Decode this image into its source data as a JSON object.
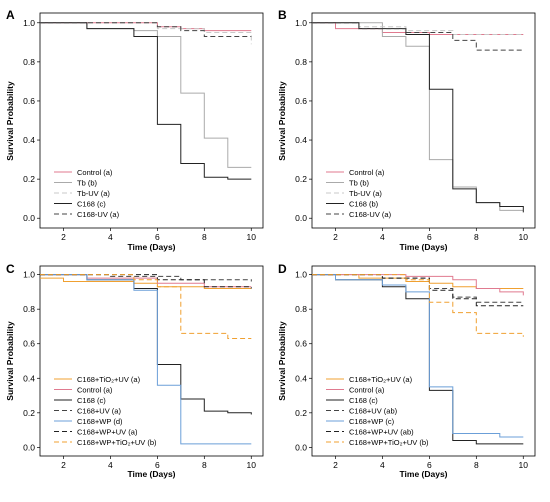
{
  "chart_data": [
    {
      "panel": "A",
      "type": "line",
      "step": true,
      "xlabel": "Time (Days)",
      "ylabel": "Survival Probability",
      "xlim": [
        1,
        10.5
      ],
      "ylim": [
        -0.05,
        1.05
      ],
      "xticks": [
        "2",
        "4",
        "6",
        "8",
        "10"
      ],
      "yticks": [
        "0.0",
        "0.2",
        "0.4",
        "0.6",
        "0.8",
        "1.0"
      ],
      "legend_position": "bottom-left",
      "series": [
        {
          "name": "Control (a)",
          "color": "#e07a8f",
          "dash": false,
          "x": [
            1,
            6,
            7,
            8,
            10
          ],
          "y": [
            1.0,
            0.98,
            0.97,
            0.96,
            0.96
          ]
        },
        {
          "name": "Tb (b)",
          "color": "#aaaaaa",
          "dash": false,
          "x": [
            1,
            3,
            5,
            6,
            7,
            8,
            9,
            10
          ],
          "y": [
            1.0,
            0.97,
            0.96,
            0.93,
            0.64,
            0.41,
            0.26,
            0.26
          ]
        },
        {
          "name": "Tb-UV (a)",
          "color": "#c8c8c8",
          "dash": true,
          "x": [
            1,
            6,
            8,
            10
          ],
          "y": [
            1.0,
            0.97,
            0.95,
            0.89
          ]
        },
        {
          "name": "C168 (c)",
          "color": "#222222",
          "dash": false,
          "x": [
            1,
            3,
            5,
            6,
            7,
            8,
            9,
            10
          ],
          "y": [
            1.0,
            0.97,
            0.93,
            0.48,
            0.28,
            0.21,
            0.2,
            0.2
          ]
        },
        {
          "name": "C168-UV (a)",
          "color": "#444444",
          "dash": true,
          "x": [
            1,
            3,
            6,
            7,
            8,
            10
          ],
          "y": [
            1.0,
            1.0,
            0.98,
            0.96,
            0.93,
            0.93
          ]
        }
      ]
    },
    {
      "panel": "B",
      "type": "line",
      "step": true,
      "xlabel": "Time (Days)",
      "ylabel": "Survival Probability",
      "xlim": [
        1,
        10.5
      ],
      "ylim": [
        -0.05,
        1.05
      ],
      "xticks": [
        "2",
        "4",
        "6",
        "8",
        "10"
      ],
      "yticks": [
        "0.0",
        "0.2",
        "0.4",
        "0.6",
        "0.8",
        "1.0"
      ],
      "legend_position": "bottom-left",
      "series": [
        {
          "name": "Control (a)",
          "color": "#e07a8f",
          "dash": false,
          "x": [
            1,
            2,
            4,
            6,
            10
          ],
          "y": [
            1.0,
            0.97,
            0.95,
            0.94,
            0.94
          ]
        },
        {
          "name": "Tb (b)",
          "color": "#aaaaaa",
          "dash": false,
          "x": [
            1,
            4,
            5,
            6,
            7,
            8,
            9,
            10
          ],
          "y": [
            1.0,
            0.93,
            0.88,
            0.3,
            0.16,
            0.08,
            0.04,
            0.04
          ]
        },
        {
          "name": "Tb-UV (a)",
          "color": "#c8c8c8",
          "dash": true,
          "x": [
            1,
            3,
            5,
            7,
            10
          ],
          "y": [
            1.0,
            0.98,
            0.96,
            0.94,
            0.94
          ]
        },
        {
          "name": "C168 (b)",
          "color": "#222222",
          "dash": false,
          "x": [
            1,
            3,
            5,
            6,
            7,
            8,
            9,
            10
          ],
          "y": [
            1.0,
            0.97,
            0.94,
            0.66,
            0.15,
            0.08,
            0.06,
            0.03
          ]
        },
        {
          "name": "C168-UV (a)",
          "color": "#444444",
          "dash": true,
          "x": [
            1,
            3,
            5,
            7,
            8,
            10
          ],
          "y": [
            1.0,
            0.97,
            0.95,
            0.91,
            0.86,
            0.86
          ]
        }
      ]
    },
    {
      "panel": "C",
      "type": "line",
      "step": true,
      "xlabel": "Time (Days)",
      "ylabel": "Survival Probability",
      "xlim": [
        1,
        10.5
      ],
      "ylim": [
        -0.05,
        1.05
      ],
      "xticks": [
        "2",
        "4",
        "6",
        "8",
        "10"
      ],
      "yticks": [
        "0.0",
        "0.2",
        "0.4",
        "0.6",
        "0.8",
        "1.0"
      ],
      "legend_position": "bottom-left",
      "series": [
        {
          "name": "C168+TiO₂+UV (a)",
          "color": "#f0a030",
          "dash": false,
          "x": [
            1,
            2,
            5,
            6,
            8,
            10
          ],
          "y": [
            0.98,
            0.96,
            0.95,
            0.93,
            0.92,
            0.92
          ]
        },
        {
          "name": "Control (a)",
          "color": "#e07a8f",
          "dash": false,
          "x": [
            1,
            3,
            6,
            8,
            10
          ],
          "y": [
            1.0,
            0.98,
            0.95,
            0.93,
            0.93
          ]
        },
        {
          "name": "C168 (c)",
          "color": "#222222",
          "dash": false,
          "x": [
            1,
            3,
            5,
            6,
            7,
            8,
            9,
            10
          ],
          "y": [
            1.0,
            0.97,
            0.92,
            0.48,
            0.28,
            0.21,
            0.2,
            0.19
          ]
        },
        {
          "name": "C168+UV (a)",
          "color": "#444444",
          "dash": true,
          "x": [
            1,
            4,
            7,
            10
          ],
          "y": [
            1.0,
            0.99,
            0.97,
            0.96
          ]
        },
        {
          "name": "C168+WP (d)",
          "color": "#6b9fd8",
          "dash": false,
          "x": [
            1,
            3,
            5,
            6,
            7,
            10
          ],
          "y": [
            1.0,
            0.97,
            0.91,
            0.36,
            0.02,
            0.02
          ]
        },
        {
          "name": "C168+WP+UV (a)",
          "color": "#222222",
          "dash": true,
          "x": [
            1,
            6,
            8,
            10
          ],
          "y": [
            1.0,
            0.97,
            0.93,
            0.92
          ]
        },
        {
          "name": "C168+WP+TiO₂+UV (b)",
          "color": "#f0a030",
          "dash": true,
          "x": [
            1,
            5,
            6,
            7,
            9,
            10
          ],
          "y": [
            1.0,
            0.97,
            0.93,
            0.66,
            0.63,
            0.63
          ]
        }
      ]
    },
    {
      "panel": "D",
      "type": "line",
      "step": true,
      "xlabel": "Time (Days)",
      "ylabel": "Survival Probability",
      "xlim": [
        1,
        10.5
      ],
      "ylim": [
        -0.05,
        1.05
      ],
      "xticks": [
        "2",
        "4",
        "6",
        "8",
        "10"
      ],
      "yticks": [
        "0.0",
        "0.2",
        "0.4",
        "0.6",
        "0.8",
        "1.0"
      ],
      "legend_position": "bottom-left",
      "series": [
        {
          "name": "C168+TiO₂+UV (a)",
          "color": "#f0a030",
          "dash": false,
          "x": [
            1,
            3,
            5,
            6,
            7,
            8,
            10
          ],
          "y": [
            1.0,
            0.98,
            0.96,
            0.95,
            0.93,
            0.92,
            0.92
          ]
        },
        {
          "name": "Control (a)",
          "color": "#e07a8f",
          "dash": false,
          "x": [
            1,
            5,
            7,
            8,
            9,
            10
          ],
          "y": [
            1.0,
            0.99,
            0.97,
            0.92,
            0.9,
            0.88
          ]
        },
        {
          "name": "C168 (c)",
          "color": "#222222",
          "dash": false,
          "x": [
            1,
            2,
            4,
            5,
            6,
            7,
            8,
            10
          ],
          "y": [
            1.0,
            0.97,
            0.93,
            0.86,
            0.33,
            0.04,
            0.02,
            0.02
          ]
        },
        {
          "name": "C168+UV (ab)",
          "color": "#444444",
          "dash": true,
          "x": [
            1,
            4,
            6,
            7,
            8,
            10
          ],
          "y": [
            1.0,
            0.98,
            0.92,
            0.87,
            0.84,
            0.84
          ]
        },
        {
          "name": "C168+WP (c)",
          "color": "#6b9fd8",
          "dash": false,
          "x": [
            1,
            2,
            4,
            5,
            6,
            7,
            9,
            10
          ],
          "y": [
            1.0,
            0.97,
            0.94,
            0.9,
            0.35,
            0.08,
            0.06,
            0.06
          ]
        },
        {
          "name": "C168+WP+UV (ab)",
          "color": "#222222",
          "dash": true,
          "x": [
            1,
            4,
            6,
            7,
            8,
            10
          ],
          "y": [
            1.0,
            0.98,
            0.91,
            0.86,
            0.82,
            0.82
          ]
        },
        {
          "name": "C168+WP+TiO₂+UV (b)",
          "color": "#f0a030",
          "dash": true,
          "x": [
            1,
            5,
            6,
            7,
            8,
            10
          ],
          "y": [
            1.0,
            0.97,
            0.84,
            0.78,
            0.66,
            0.64
          ]
        }
      ]
    }
  ]
}
